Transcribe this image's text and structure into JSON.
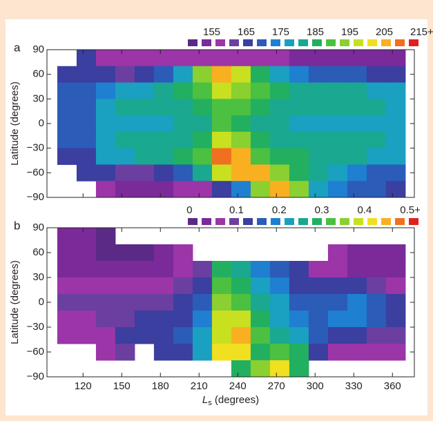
{
  "chart_data": [
    {
      "type": "heatmap",
      "panel_label": "a",
      "ylabel": "Latitude (degrees)",
      "xlim": [
        92,
        377
      ],
      "ylim": [
        -90,
        90
      ],
      "yticks": [
        90,
        60,
        30,
        0,
        {
          "value": -30,
          "label": "−30"
        },
        {
          "value": -60,
          "label": "−60"
        },
        {
          "value": -90,
          "label": "−90"
        }
      ],
      "x_edges": [
        100,
        115,
        130,
        145,
        160,
        175,
        190,
        205,
        220,
        235,
        250,
        265,
        280,
        295,
        310,
        325,
        340,
        355,
        370
      ],
      "y_edges": [
        90,
        70,
        50,
        30,
        10,
        -10,
        -30,
        -50,
        -70,
        -90
      ],
      "values": [
        [
          null,
          168,
          172,
          172,
          172,
          170,
          168,
          null,
          null
        ],
        [
          165,
          168,
          170,
          172,
          172,
          170,
          168,
          165,
          null
        ],
        [
          158,
          165,
          175,
          180,
          178,
          180,
          178,
          165,
          158
        ],
        [
          158,
          163,
          178,
          182,
          180,
          182,
          180,
          162,
          156
        ],
        [
          160,
          168,
          180,
          182,
          180,
          182,
          182,
          163,
          155
        ],
        [
          160,
          172,
          182,
          182,
          180,
          183,
          183,
          168,
          156
        ],
        [
          158,
          180,
          186,
          184,
          182,
          184,
          186,
          172,
          157
        ],
        [
          158,
          195,
          190,
          186,
          184,
          186,
          192,
          182,
          160
        ],
        [
          160,
          205,
          198,
          192,
          190,
          198,
          210,
          200,
          165
        ],
        [
          160,
          200,
          196,
          190,
          186,
          195,
          208,
          205,
          175
        ],
        [
          158,
          188,
          190,
          186,
          184,
          186,
          192,
          205,
          195
        ],
        [
          157,
          180,
          186,
          184,
          182,
          184,
          188,
          195,
          205
        ],
        [
          156,
          175,
          184,
          182,
          180,
          183,
          186,
          188,
          195
        ],
        [
          155,
          172,
          182,
          182,
          180,
          182,
          184,
          182,
          178
        ],
        [
          155,
          170,
          182,
          182,
          180,
          182,
          182,
          178,
          175
        ],
        [
          155,
          170,
          182,
          182,
          180,
          182,
          182,
          175,
          172
        ],
        [
          155,
          168,
          180,
          182,
          180,
          181,
          180,
          172,
          170
        ],
        [
          155,
          168,
          180,
          180,
          178,
          180,
          178,
          170,
          168
        ]
      ],
      "colorbar": {
        "lim": [
          149,
          217
        ],
        "ticks": [
          155,
          165,
          175,
          185,
          195,
          205,
          {
            "value": 215,
            "label": "215+"
          }
        ],
        "colors": [
          "#5b2a86",
          "#7b2a9a",
          "#9b35a8",
          "#6b3fa0",
          "#3b3f9f",
          "#2b5cb8",
          "#1f7fd0",
          "#1aa0c0",
          "#1aa890",
          "#22b060",
          "#4cc040",
          "#8ad030",
          "#c8e020",
          "#f0e020",
          "#f8b020",
          "#f07020",
          "#e02020"
        ]
      }
    },
    {
      "type": "heatmap",
      "panel_label": "b",
      "ylabel": "Latitude (degrees)",
      "xlabel": {
        "main": "L",
        "sub": "s",
        "rest": " (degrees)"
      },
      "xlim": [
        92,
        377
      ],
      "ylim": [
        -90,
        90
      ],
      "xticks": [
        120,
        150,
        180,
        210,
        240,
        270,
        300,
        330,
        360
      ],
      "yticks": [
        90,
        60,
        30,
        0,
        {
          "value": -30,
          "label": "−30"
        },
        {
          "value": -60,
          "label": "−60"
        },
        {
          "value": -90,
          "label": "−90"
        }
      ],
      "x_edges": [
        100,
        115,
        130,
        145,
        160,
        175,
        190,
        205,
        220,
        235,
        250,
        265,
        280,
        295,
        310,
        325,
        340,
        355,
        370
      ],
      "y_edges": [
        90,
        70,
        50,
        30,
        10,
        -10,
        -30,
        -50,
        -70,
        -90
      ],
      "values": [
        [
          0.03,
          0.03,
          0.05,
          0.08,
          0.1,
          0.08,
          0.07,
          null,
          null
        ],
        [
          0.03,
          0.03,
          0.05,
          0.08,
          0.1,
          0.08,
          0.06,
          null,
          null
        ],
        [
          0.02,
          0.02,
          0.04,
          0.07,
          0.1,
          0.1,
          0.08,
          0.08,
          null
        ],
        [
          null,
          0.02,
          0.03,
          0.06,
          0.1,
          0.1,
          0.12,
          0.1,
          null
        ],
        [
          null,
          0.02,
          0.03,
          0.06,
          0.1,
          0.12,
          0.14,
          null,
          null
        ],
        [
          null,
          0.04,
          0.05,
          0.07,
          0.1,
          0.12,
          0.14,
          0.12,
          null
        ],
        [
          null,
          0.06,
          0.07,
          0.09,
          0.12,
          0.14,
          0.18,
          0.15,
          null
        ],
        [
          null,
          null,
          0.1,
          0.14,
          0.18,
          0.2,
          0.22,
          0.22,
          null
        ],
        [
          null,
          null,
          0.3,
          0.34,
          0.35,
          0.38,
          0.4,
          0.42,
          null
        ],
        [
          null,
          null,
          0.28,
          0.3,
          0.32,
          0.4,
          0.45,
          0.44,
          0.3
        ],
        [
          null,
          null,
          0.2,
          0.22,
          0.25,
          0.3,
          0.32,
          0.3,
          0.35
        ],
        [
          null,
          null,
          0.18,
          0.2,
          0.22,
          0.24,
          0.28,
          0.32,
          0.42
        ],
        [
          null,
          null,
          0.12,
          0.15,
          0.18,
          0.2,
          0.22,
          0.3,
          0.3
        ],
        [
          null,
          null,
          0.08,
          0.12,
          0.16,
          0.18,
          0.16,
          0.12,
          null
        ],
        [
          null,
          0.06,
          0.06,
          0.12,
          0.18,
          0.2,
          0.14,
          0.08,
          null
        ],
        [
          null,
          0.05,
          0.05,
          0.12,
          0.2,
          0.2,
          0.12,
          0.06,
          null
        ],
        [
          null,
          0.05,
          0.05,
          0.1,
          0.18,
          0.18,
          0.1,
          0.06,
          null
        ],
        [
          null,
          0.04,
          0.05,
          0.08,
          0.14,
          0.14,
          0.1,
          0.06,
          null
        ]
      ],
      "colorbar": {
        "lim": [
          -0.01,
          0.54
        ],
        "ticks": [
          0,
          0.1,
          0.2,
          0.3,
          0.4,
          {
            "value": 0.5,
            "label": "0.5+"
          }
        ],
        "colors": [
          "#5b2a86",
          "#7b2a9a",
          "#9b35a8",
          "#6b3fa0",
          "#3b3f9f",
          "#2b5cb8",
          "#1f7fd0",
          "#1aa0c0",
          "#1aa890",
          "#22b060",
          "#4cc040",
          "#8ad030",
          "#c8e020",
          "#f0e020",
          "#f8b020",
          "#f07020",
          "#e02020"
        ]
      }
    }
  ]
}
